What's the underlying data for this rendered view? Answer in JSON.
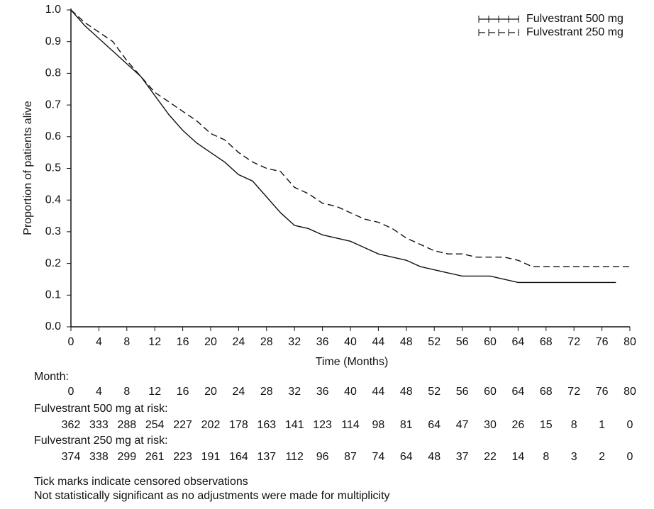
{
  "chart_data": {
    "type": "line",
    "xlabel": "Time (Months)",
    "ylabel": "Proportion of patients alive",
    "x": [
      0,
      2,
      4,
      6,
      8,
      10,
      12,
      14,
      16,
      18,
      20,
      22,
      24,
      26,
      28,
      30,
      32,
      34,
      36,
      38,
      40,
      42,
      44,
      46,
      48,
      50,
      52,
      54,
      56,
      58,
      60,
      62,
      64,
      66,
      68,
      70,
      72,
      74,
      76,
      78,
      80
    ],
    "series": [
      {
        "name": "Fulvestrant 500 mg",
        "color": "#111111",
        "dash": false,
        "values": [
          1.0,
          0.95,
          0.91,
          0.87,
          0.83,
          0.79,
          0.73,
          0.67,
          0.62,
          0.58,
          0.55,
          0.52,
          0.48,
          0.46,
          0.41,
          0.36,
          0.32,
          0.31,
          0.29,
          0.28,
          0.27,
          0.25,
          0.23,
          0.22,
          0.21,
          0.19,
          0.18,
          0.17,
          0.16,
          0.16,
          0.16,
          0.15,
          0.14,
          0.14,
          0.14,
          0.14,
          0.14,
          0.14,
          0.14,
          0.14,
          null
        ]
      },
      {
        "name": "Fulvestrant 250 mg",
        "color": "#111111",
        "dash": true,
        "values": [
          1.0,
          0.96,
          0.93,
          0.9,
          0.84,
          0.79,
          0.74,
          0.71,
          0.68,
          0.65,
          0.61,
          0.59,
          0.55,
          0.52,
          0.5,
          0.49,
          0.44,
          0.42,
          0.39,
          0.38,
          0.36,
          0.34,
          0.33,
          0.31,
          0.28,
          0.26,
          0.24,
          0.23,
          0.23,
          0.22,
          0.22,
          0.22,
          0.21,
          0.19,
          0.19,
          0.19,
          0.19,
          0.19,
          0.19,
          0.19,
          0.19
        ]
      }
    ],
    "xlim": [
      0,
      80
    ],
    "xticks": [
      0,
      4,
      8,
      12,
      16,
      20,
      24,
      28,
      32,
      36,
      40,
      44,
      48,
      52,
      56,
      60,
      64,
      68,
      72,
      76,
      80
    ],
    "ylim": [
      0,
      1
    ],
    "yticks": [
      {
        "value": 0,
        "label": "0.0"
      },
      0.1,
      0.2,
      0.3,
      0.4,
      0.5,
      0.6,
      0.7,
      0.8,
      0.9,
      {
        "value": 1,
        "label": "1.0"
      }
    ],
    "legend": "upper right"
  },
  "risk_table": {
    "label": "Month:",
    "months": [
      0,
      4,
      8,
      12,
      16,
      20,
      24,
      28,
      32,
      36,
      40,
      44,
      48,
      52,
      56,
      60,
      64,
      68,
      72,
      76,
      80
    ],
    "rows": [
      {
        "label": "Fulvestrant 500 mg at risk:",
        "values": [
          362,
          333,
          288,
          254,
          227,
          202,
          178,
          163,
          141,
          123,
          114,
          98,
          81,
          64,
          47,
          30,
          26,
          15,
          8,
          1,
          0
        ]
      },
      {
        "label": "Fulvestrant 250 mg at risk:",
        "values": [
          374,
          338,
          299,
          261,
          223,
          191,
          164,
          137,
          112,
          96,
          87,
          74,
          64,
          48,
          37,
          22,
          14,
          8,
          3,
          2,
          0
        ]
      }
    ]
  },
  "notes": [
    "Tick marks indicate censored observations",
    "Not statistically significant as no adjustments were made for multiplicity"
  ]
}
